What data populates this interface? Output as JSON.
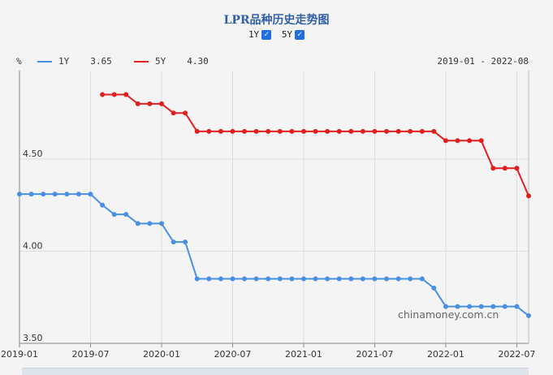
{
  "header": {
    "title": "LPR品种历史走势图",
    "toggles": [
      {
        "label": "1Y",
        "checked": true
      },
      {
        "label": "5Y",
        "checked": true
      }
    ]
  },
  "legend": {
    "unit": "%",
    "items": [
      {
        "name": "1Y",
        "value": "3.65",
        "color": "#4a90e2"
      },
      {
        "name": "5Y",
        "value": "4.30",
        "color": "#e02020"
      }
    ],
    "range": "2019-01 - 2022-08"
  },
  "watermark": "chinamoney.com.cn",
  "chart_data": {
    "type": "line",
    "title": "LPR品种历史走势图",
    "ylabel": "%",
    "yticks": [
      "3.50",
      "4.00",
      "4.50"
    ],
    "xticks": [
      "2019-01",
      "2019-07",
      "2020-01",
      "2020-07",
      "2021-01",
      "2021-07",
      "2022-01",
      "2022-07"
    ],
    "ylim": [
      3.5,
      4.98
    ],
    "xlim": [
      "2019-01",
      "2022-08"
    ],
    "grid": true,
    "series": [
      {
        "name": "1Y",
        "color": "#4a90e2",
        "x": [
          "2019-01",
          "2019-02",
          "2019-03",
          "2019-04",
          "2019-05",
          "2019-06",
          "2019-07",
          "2019-08",
          "2019-09",
          "2019-10",
          "2019-11",
          "2019-12",
          "2020-01",
          "2020-02",
          "2020-03",
          "2020-04",
          "2020-05",
          "2020-06",
          "2020-07",
          "2020-08",
          "2020-09",
          "2020-10",
          "2020-11",
          "2020-12",
          "2021-01",
          "2021-02",
          "2021-03",
          "2021-04",
          "2021-05",
          "2021-06",
          "2021-07",
          "2021-08",
          "2021-09",
          "2021-10",
          "2021-11",
          "2021-12",
          "2022-01",
          "2022-02",
          "2022-03",
          "2022-04",
          "2022-05",
          "2022-06",
          "2022-07",
          "2022-08"
        ],
        "values": [
          4.31,
          4.31,
          4.31,
          4.31,
          4.31,
          4.31,
          4.31,
          4.25,
          4.2,
          4.2,
          4.15,
          4.15,
          4.15,
          4.05,
          4.05,
          3.85,
          3.85,
          3.85,
          3.85,
          3.85,
          3.85,
          3.85,
          3.85,
          3.85,
          3.85,
          3.85,
          3.85,
          3.85,
          3.85,
          3.85,
          3.85,
          3.85,
          3.85,
          3.85,
          3.85,
          3.8,
          3.7,
          3.7,
          3.7,
          3.7,
          3.7,
          3.7,
          3.7,
          3.65
        ]
      },
      {
        "name": "5Y",
        "color": "#e02020",
        "x": [
          "2019-08",
          "2019-09",
          "2019-10",
          "2019-11",
          "2019-12",
          "2020-01",
          "2020-02",
          "2020-03",
          "2020-04",
          "2020-05",
          "2020-06",
          "2020-07",
          "2020-08",
          "2020-09",
          "2020-10",
          "2020-11",
          "2020-12",
          "2021-01",
          "2021-02",
          "2021-03",
          "2021-04",
          "2021-05",
          "2021-06",
          "2021-07",
          "2021-08",
          "2021-09",
          "2021-10",
          "2021-11",
          "2021-12",
          "2022-01",
          "2022-02",
          "2022-03",
          "2022-04",
          "2022-05",
          "2022-06",
          "2022-07",
          "2022-08"
        ],
        "values": [
          4.85,
          4.85,
          4.85,
          4.8,
          4.8,
          4.8,
          4.75,
          4.75,
          4.65,
          4.65,
          4.65,
          4.65,
          4.65,
          4.65,
          4.65,
          4.65,
          4.65,
          4.65,
          4.65,
          4.65,
          4.65,
          4.65,
          4.65,
          4.65,
          4.65,
          4.65,
          4.65,
          4.65,
          4.65,
          4.6,
          4.6,
          4.6,
          4.6,
          4.45,
          4.45,
          4.45,
          4.3
        ]
      }
    ]
  }
}
